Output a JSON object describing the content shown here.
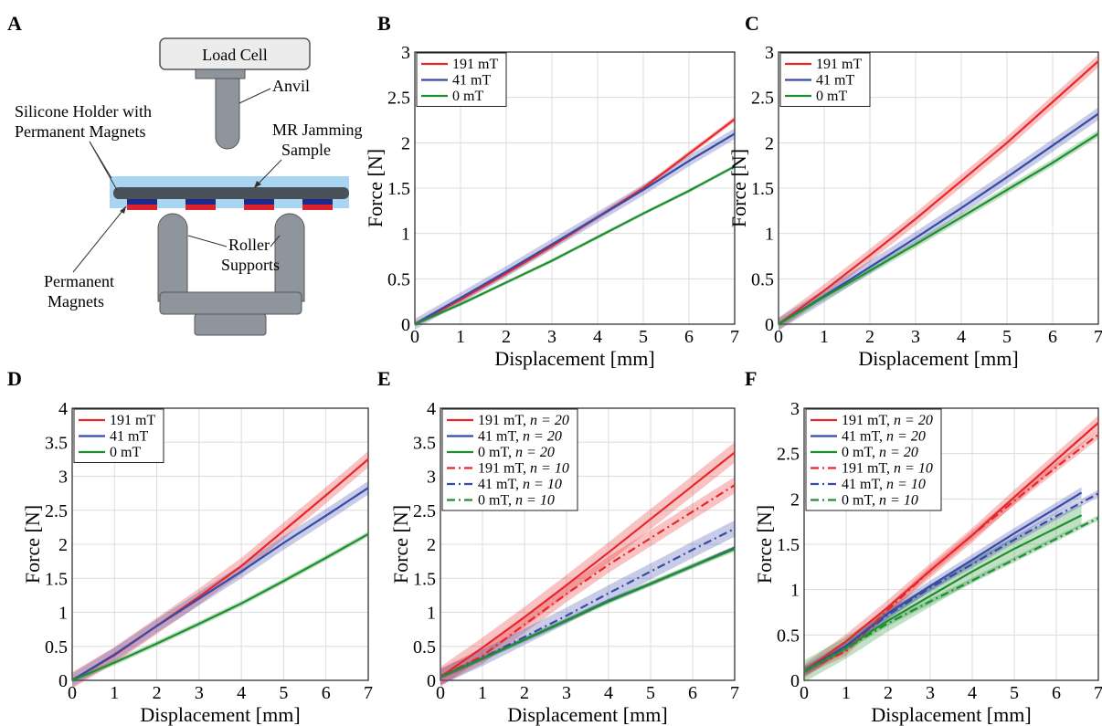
{
  "colors": {
    "red": "#e8262a",
    "blue": "#3949a8",
    "green": "#1f8f2e"
  },
  "diagram": {
    "panel_label": "A",
    "load_cell": "Load Cell",
    "anvil": "Anvil",
    "holder_line1": "Silicone Holder with",
    "holder_line2": "Permanent Magnets",
    "sample_line1": "MR Jamming",
    "sample_line2": "Sample",
    "roller_line1": "Roller",
    "roller_line2": "Supports",
    "magnets_line1": "Permanent",
    "magnets_line2": "Magnets"
  },
  "chart_data": [
    {
      "panel": "B",
      "type": "line",
      "xlabel": "Displacement [mm]",
      "ylabel": "Force [N]",
      "xlim": [
        0,
        7
      ],
      "ylim": [
        0,
        3
      ],
      "xticks": [
        0,
        1,
        2,
        3,
        4,
        5,
        6,
        7
      ],
      "yticks": [
        0,
        0.5,
        1,
        1.5,
        2,
        2.5,
        3
      ],
      "grid": true,
      "legend": "top-left",
      "series": [
        {
          "name": "191 mT",
          "color": "red",
          "style": "solid",
          "band": 0.03,
          "x": [
            0,
            1,
            2,
            3,
            4,
            5,
            6,
            7
          ],
          "y": [
            0,
            0.27,
            0.56,
            0.86,
            1.18,
            1.5,
            1.88,
            2.26
          ]
        },
        {
          "name": "41 mT",
          "color": "blue",
          "style": "solid",
          "band": 0.06,
          "x": [
            0,
            1,
            2,
            3,
            4,
            5,
            6,
            7
          ],
          "y": [
            0,
            0.29,
            0.58,
            0.88,
            1.18,
            1.48,
            1.8,
            2.1
          ]
        },
        {
          "name": "0 mT",
          "color": "green",
          "style": "solid",
          "band": 0.02,
          "x": [
            0,
            1,
            2,
            3,
            4,
            5,
            6,
            7
          ],
          "y": [
            0,
            0.22,
            0.46,
            0.7,
            0.96,
            1.22,
            1.47,
            1.74
          ]
        }
      ]
    },
    {
      "panel": "C",
      "type": "line",
      "xlabel": "Displacement [mm]",
      "ylabel": "Force [N]",
      "xlim": [
        0,
        7
      ],
      "ylim": [
        0,
        3
      ],
      "xticks": [
        0,
        1,
        2,
        3,
        4,
        5,
        6,
        7
      ],
      "yticks": [
        0,
        0.5,
        1,
        1.5,
        2,
        2.5,
        3
      ],
      "grid": true,
      "legend": "top-left",
      "series": [
        {
          "name": "191 mT",
          "color": "red",
          "style": "solid",
          "band": 0.07,
          "x": [
            0,
            1,
            2,
            3,
            4,
            5,
            6,
            7
          ],
          "y": [
            0,
            0.37,
            0.76,
            1.16,
            1.58,
            2.0,
            2.45,
            2.9
          ]
        },
        {
          "name": "41 mT",
          "color": "blue",
          "style": "solid",
          "band": 0.07,
          "x": [
            0,
            1,
            2,
            3,
            4,
            5,
            6,
            7
          ],
          "y": [
            0,
            0.31,
            0.63,
            0.95,
            1.28,
            1.62,
            1.97,
            2.32
          ]
        },
        {
          "name": "0 mT",
          "color": "green",
          "style": "solid",
          "band": 0.04,
          "x": [
            0,
            1,
            2,
            3,
            4,
            5,
            6,
            7
          ],
          "y": [
            0,
            0.3,
            0.59,
            0.88,
            1.18,
            1.48,
            1.78,
            2.1
          ]
        }
      ]
    },
    {
      "panel": "D",
      "type": "line",
      "xlabel": "Displacement [mm]",
      "ylabel": "Force [N]",
      "xlim": [
        0,
        7
      ],
      "ylim": [
        0,
        4
      ],
      "xticks": [
        0,
        1,
        2,
        3,
        4,
        5,
        6,
        7
      ],
      "yticks": [
        0,
        0.5,
        1,
        1.5,
        2,
        2.5,
        3,
        3.5,
        4
      ],
      "grid": true,
      "legend": "top-left",
      "series": [
        {
          "name": "191 mT",
          "color": "red",
          "style": "solid",
          "band": 0.12,
          "x": [
            0,
            1,
            2,
            3,
            4,
            5,
            6,
            7
          ],
          "y": [
            0,
            0.37,
            0.8,
            1.23,
            1.68,
            2.2,
            2.72,
            3.25
          ]
        },
        {
          "name": "41 mT",
          "color": "blue",
          "style": "solid",
          "band": 0.1,
          "x": [
            0,
            1,
            2,
            3,
            4,
            5,
            6,
            7
          ],
          "y": [
            0,
            0.38,
            0.8,
            1.2,
            1.6,
            2.02,
            2.42,
            2.83
          ]
        },
        {
          "name": "0 mT",
          "color": "green",
          "style": "solid",
          "band": 0.04,
          "x": [
            0,
            1,
            2,
            3,
            4,
            5,
            6,
            7
          ],
          "y": [
            0,
            0.26,
            0.54,
            0.83,
            1.13,
            1.46,
            1.8,
            2.15
          ]
        }
      ]
    },
    {
      "panel": "E",
      "type": "line",
      "xlabel": "Displacement [mm]",
      "ylabel": "Force [N]",
      "xlim": [
        0,
        7
      ],
      "ylim": [
        0,
        4
      ],
      "xticks": [
        0,
        1,
        2,
        3,
        4,
        5,
        6,
        7
      ],
      "yticks": [
        0,
        0.5,
        1,
        1.5,
        2,
        2.5,
        3,
        3.5,
        4
      ],
      "grid": true,
      "legend": "top-left",
      "series": [
        {
          "name": "191 mT, n = 20",
          "color": "red",
          "style": "solid",
          "band": 0.15,
          "x": [
            0,
            1,
            2,
            3,
            4,
            5,
            6,
            7
          ],
          "y": [
            0.05,
            0.48,
            0.93,
            1.4,
            1.88,
            2.37,
            2.86,
            3.35
          ]
        },
        {
          "name": "41 mT, n = 20",
          "color": "blue",
          "style": "solid",
          "band": 0.03,
          "x": [
            0,
            1,
            2,
            3,
            4,
            5,
            6,
            7
          ],
          "y": [
            0.05,
            0.32,
            0.6,
            0.88,
            1.17,
            1.42,
            1.68,
            1.95
          ]
        },
        {
          "name": "0 mT, n = 20",
          "color": "green",
          "style": "solid",
          "band": 0.04,
          "x": [
            0,
            1,
            2,
            3,
            4,
            5,
            6,
            7
          ],
          "y": [
            0.05,
            0.32,
            0.6,
            0.88,
            1.16,
            1.42,
            1.68,
            1.93
          ]
        },
        {
          "name": "191 mT, n = 10",
          "color": "red",
          "style": "dashdot",
          "band": 0.12,
          "x": [
            0,
            1,
            2,
            3,
            4,
            5,
            6,
            7
          ],
          "y": [
            0.05,
            0.36,
            0.82,
            1.27,
            1.7,
            2.09,
            2.48,
            2.87
          ]
        },
        {
          "name": "41 mT, n = 10",
          "color": "blue",
          "style": "dashdot",
          "band": 0.12,
          "x": [
            0,
            1,
            2,
            3,
            4,
            5,
            6,
            7
          ],
          "y": [
            0.05,
            0.33,
            0.64,
            0.95,
            1.28,
            1.6,
            1.92,
            2.23
          ]
        },
        {
          "name": "0 mT, n = 10",
          "color": "green",
          "style": "dashdot",
          "band": 0.02,
          "x": [
            0,
            1,
            2,
            3,
            4,
            5,
            6,
            7
          ],
          "y": [
            0.05,
            0.32,
            0.6,
            0.88,
            1.16,
            1.42,
            1.68,
            1.94
          ]
        }
      ]
    },
    {
      "panel": "F",
      "type": "line",
      "xlabel": "Displacement [mm]",
      "ylabel": "Force [N]",
      "xlim": [
        0,
        7
      ],
      "ylim": [
        0,
        3
      ],
      "xticks": [
        0,
        1,
        2,
        3,
        4,
        5,
        6,
        7
      ],
      "yticks": [
        0,
        0.5,
        1,
        1.5,
        2,
        2.5,
        3
      ],
      "grid": true,
      "legend": "top-left",
      "series": [
        {
          "name": "191 mT, n = 20",
          "color": "red",
          "style": "solid",
          "band": 0.08,
          "x": [
            0,
            1,
            2,
            3,
            4,
            5,
            6,
            7
          ],
          "y": [
            0.1,
            0.43,
            0.81,
            1.21,
            1.6,
            2.02,
            2.43,
            2.84
          ]
        },
        {
          "name": "41 mT, n = 20",
          "color": "blue",
          "style": "solid",
          "band": 0.06,
          "x": [
            0,
            1,
            2,
            3,
            4,
            5,
            6,
            6.6
          ],
          "y": [
            0.1,
            0.38,
            0.74,
            1.04,
            1.33,
            1.62,
            1.9,
            2.07
          ]
        },
        {
          "name": "0 mT, n = 20",
          "color": "green",
          "style": "solid",
          "band": 0.12,
          "x": [
            0,
            1,
            2,
            3,
            4,
            5,
            6,
            6.6
          ],
          "y": [
            0.1,
            0.36,
            0.66,
            0.93,
            1.2,
            1.45,
            1.68,
            1.82
          ]
        },
        {
          "name": "191 mT, n = 10",
          "color": "red",
          "style": "dashdot",
          "band": 0.05,
          "x": [
            0,
            1,
            2,
            3,
            4,
            5,
            6,
            7
          ],
          "y": [
            0.1,
            0.32,
            0.78,
            1.21,
            1.6,
            1.98,
            2.35,
            2.71
          ]
        },
        {
          "name": "41 mT, n = 10",
          "color": "blue",
          "style": "dashdot",
          "band": 0.04,
          "x": [
            0,
            1,
            2,
            3,
            4,
            5,
            6,
            7
          ],
          "y": [
            0.1,
            0.38,
            0.72,
            1.02,
            1.28,
            1.55,
            1.81,
            2.06
          ]
        },
        {
          "name": "0 mT, n = 10",
          "color": "green",
          "style": "dashdot",
          "band": 0.03,
          "x": [
            0,
            1,
            2,
            3,
            4,
            5,
            6,
            7
          ],
          "y": [
            0.1,
            0.35,
            0.63,
            0.87,
            1.1,
            1.33,
            1.56,
            1.79
          ]
        }
      ]
    }
  ]
}
